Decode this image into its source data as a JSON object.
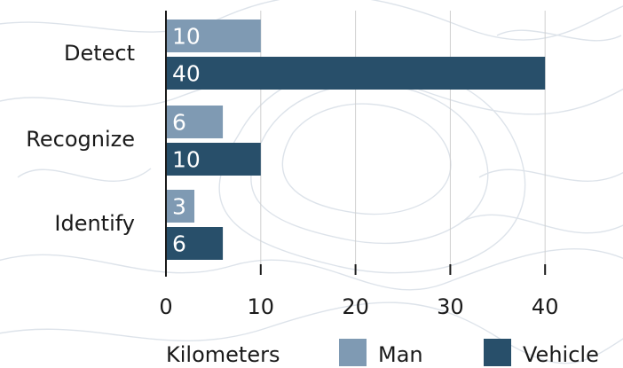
{
  "chart_data": {
    "type": "bar",
    "orientation": "horizontal",
    "categories": [
      "Detect",
      "Recognize",
      "Identify"
    ],
    "series": [
      {
        "name": "Man",
        "values": [
          10,
          6,
          3
        ],
        "color": "#7f9ab3"
      },
      {
        "name": "Vehicle",
        "values": [
          40,
          10,
          6
        ],
        "color": "#284f6a"
      }
    ],
    "xlabel": "Kilometers",
    "xlim": [
      0,
      45
    ],
    "xticks": [
      0,
      10,
      20,
      30,
      40
    ],
    "grid": true,
    "legend_position": "bottom"
  }
}
